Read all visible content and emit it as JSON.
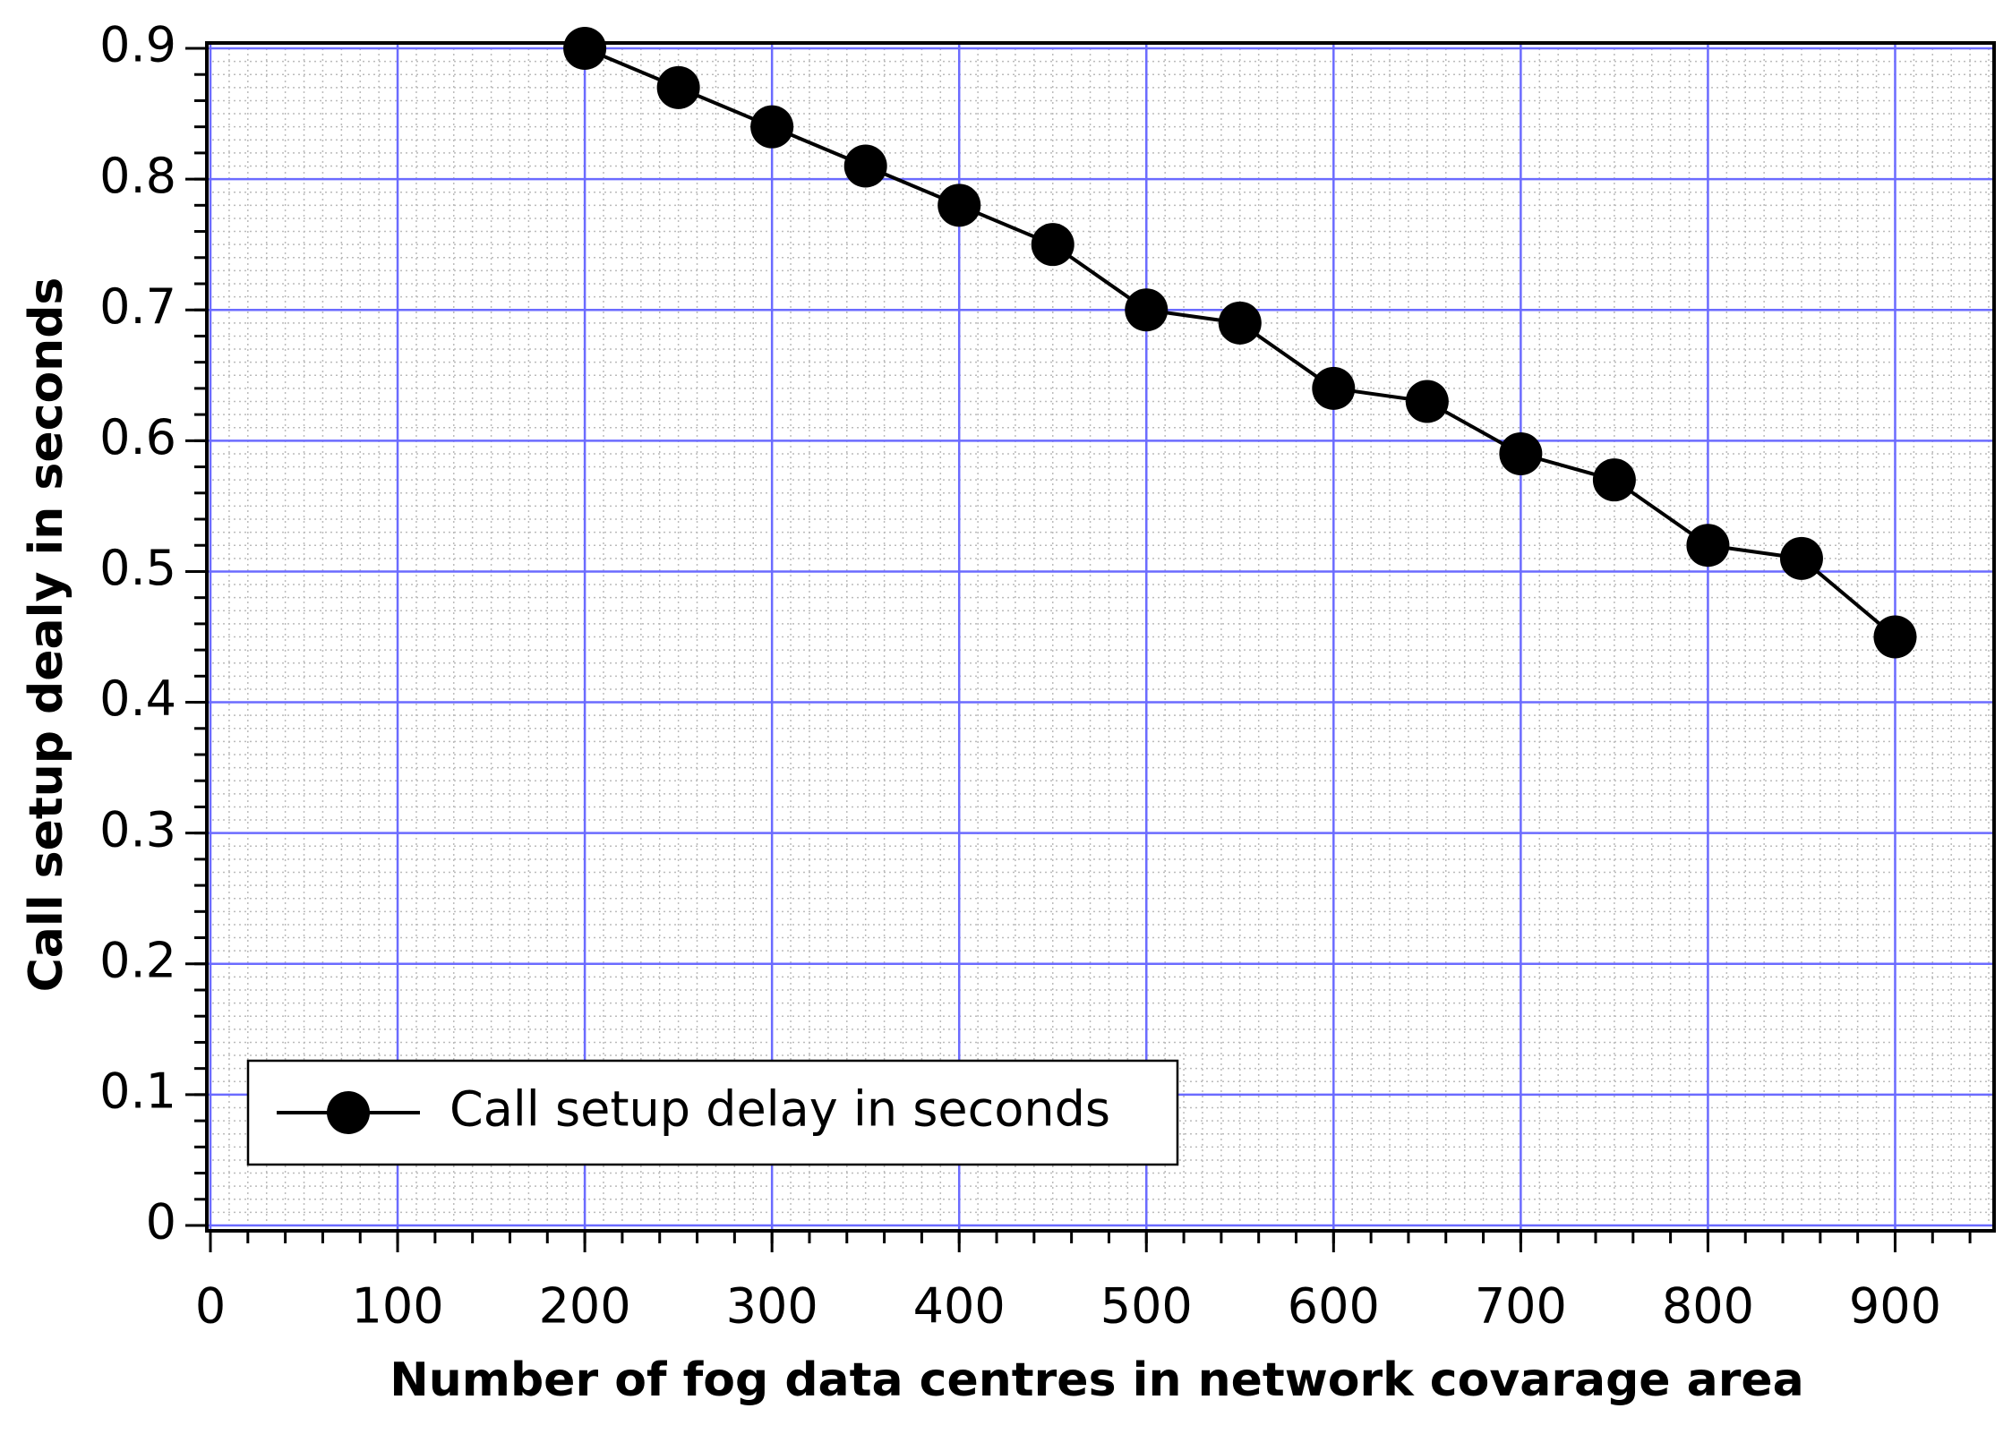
{
  "chart_data": {
    "type": "line",
    "xlabel": "Number of fog data centres in network covarage area",
    "ylabel": "Call setup dealy in seconds",
    "x": [
      200,
      250,
      300,
      350,
      400,
      450,
      500,
      550,
      600,
      650,
      700,
      750,
      800,
      850,
      900
    ],
    "series": [
      {
        "name": "Call setup delay in seconds",
        "color": "#000000",
        "values": [
          0.9,
          0.87,
          0.84,
          0.81,
          0.78,
          0.75,
          0.7,
          0.69,
          0.64,
          0.63,
          0.59,
          0.57,
          0.52,
          0.51,
          0.45
        ]
      }
    ],
    "xlim": [
      0,
      950
    ],
    "ylim": [
      0,
      0.9
    ],
    "xticks": [
      0,
      100,
      200,
      300,
      400,
      500,
      600,
      700,
      800,
      900
    ],
    "yticks": [
      0,
      0.1,
      0.2,
      0.3,
      0.4,
      0.5,
      0.6,
      0.7,
      0.8,
      0.9
    ],
    "grid": true,
    "grid_color": "#6b6bff",
    "legend": "lower left"
  }
}
